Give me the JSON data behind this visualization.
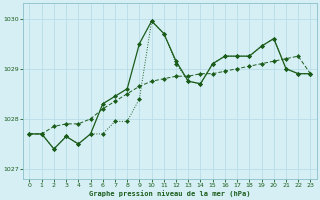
{
  "xlabel": "Graphe pression niveau de la mer (hPa)",
  "xlim": [
    -0.5,
    23.5
  ],
  "ylim": [
    1026.8,
    1030.3
  ],
  "yticks": [
    1027,
    1028,
    1029,
    1030
  ],
  "xticks": [
    0,
    1,
    2,
    3,
    4,
    5,
    6,
    7,
    8,
    9,
    10,
    11,
    12,
    13,
    14,
    15,
    16,
    17,
    18,
    19,
    20,
    21,
    22,
    23
  ],
  "background_color": "#d6eff5",
  "grid_color": "#b8dde8",
  "line_color": "#1a5c1a",
  "series_dotted_x": [
    0,
    1,
    2,
    3,
    4,
    5,
    6,
    7,
    8,
    9,
    10,
    11,
    12,
    13,
    14,
    15,
    16,
    17,
    18,
    19,
    20,
    21,
    22,
    23
  ],
  "series_dotted_y": [
    1027.7,
    1027.7,
    1027.85,
    1027.9,
    1027.9,
    1028.0,
    1028.2,
    1028.35,
    1028.5,
    1028.65,
    1028.75,
    1028.8,
    1028.85,
    1028.85,
    1028.9,
    1028.9,
    1028.95,
    1029.0,
    1029.05,
    1029.1,
    1029.15,
    1029.2,
    1029.25,
    1028.9
  ],
  "series_solid_x": [
    0,
    1,
    2,
    3,
    4,
    5,
    6,
    7,
    8,
    9,
    10,
    11,
    12,
    13,
    14,
    15,
    16,
    17,
    18,
    19,
    20,
    21,
    22,
    23
  ],
  "series_solid_y": [
    1027.7,
    1027.7,
    1027.4,
    1027.65,
    1027.5,
    1027.7,
    1028.3,
    1028.45,
    1028.6,
    1029.5,
    1029.95,
    1029.7,
    1029.15,
    1028.75,
    1028.7,
    1029.1,
    1029.25,
    1029.25,
    1029.25,
    1029.45,
    1029.6,
    1029.0,
    1028.9,
    1028.9
  ],
  "series_thin_x": [
    0,
    1,
    2,
    3,
    4,
    5,
    6,
    7,
    8,
    9,
    10,
    11,
    12,
    13,
    14,
    15,
    16,
    17,
    18,
    19,
    20,
    21,
    22,
    23
  ],
  "series_thin_y": [
    1027.7,
    1027.7,
    1027.4,
    1027.65,
    1027.5,
    1027.7,
    1027.7,
    1027.95,
    1027.95,
    1028.4,
    1029.95,
    1029.7,
    1029.1,
    1028.75,
    1028.7,
    1029.1,
    1029.25,
    1029.25,
    1029.25,
    1029.45,
    1029.6,
    1029.0,
    1028.9,
    1028.9
  ]
}
